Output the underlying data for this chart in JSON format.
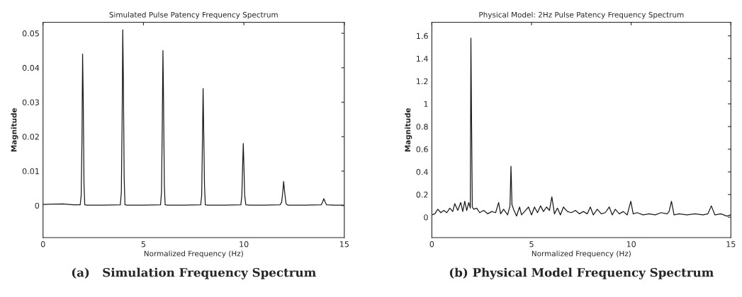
{
  "chart_data": [
    {
      "type": "line",
      "title": "Simulated Pulse Patency Frequency Spectrum",
      "xlabel": "Normalized Frequency (Hz)",
      "ylabel": "Magnitude",
      "annotations": [
        "(a)   Simulation Frequency Spectrum"
      ],
      "xlim": [
        0,
        15
      ],
      "xticks": [
        0,
        5,
        10,
        15
      ],
      "ylim": [
        -0.0093,
        0.0532
      ],
      "yticks": [
        0,
        0.01,
        0.02,
        0.03,
        0.04,
        0.05
      ],
      "grid": false,
      "marker": "none",
      "line_style": "solid",
      "series": [
        {
          "color": "#1a1a1a",
          "x": [
            0,
            0.5,
            1.0,
            1.5,
            1.85,
            1.9,
            1.94,
            1.97,
            2.0,
            2.04,
            2.08,
            2.2,
            3.0,
            3.85,
            3.9,
            3.94,
            3.97,
            4.0,
            4.04,
            4.08,
            4.2,
            5.0,
            5.85,
            5.9,
            5.94,
            5.97,
            6.0,
            6.04,
            6.08,
            6.2,
            7.0,
            7.85,
            7.9,
            7.94,
            7.97,
            8.0,
            8.04,
            8.08,
            8.2,
            9.0,
            9.85,
            9.9,
            9.94,
            9.97,
            10.0,
            10.04,
            10.1,
            10.3,
            11.0,
            11.8,
            11.88,
            11.94,
            11.98,
            12.03,
            12.1,
            12.2,
            13.0,
            13.85,
            13.92,
            13.98,
            14.05,
            14.12,
            14.5,
            15.0
          ],
          "values": [
            0.0003,
            0.0004,
            0.0005,
            0.0002,
            0.0002,
            0.003,
            0.02,
            0.044,
            0.032,
            0.006,
            0.0002,
            0.0001,
            0.0001,
            0.0002,
            0.004,
            0.026,
            0.051,
            0.037,
            0.008,
            0.0002,
            0.0001,
            0.0001,
            0.0002,
            0.004,
            0.025,
            0.045,
            0.031,
            0.006,
            0.0002,
            0.0001,
            0.0001,
            0.0002,
            0.003,
            0.02,
            0.034,
            0.022,
            0.006,
            0.0002,
            0.0001,
            0.0001,
            0.0002,
            0.003,
            0.012,
            0.018,
            0.012,
            0.003,
            0.0002,
            0.0001,
            0.0001,
            0.0002,
            0.001,
            0.004,
            0.007,
            0.004,
            0.0005,
            0.0001,
            0.0001,
            0.0002,
            0.001,
            0.002,
            0.001,
            0.0002,
            0.0001,
            0.0001
          ]
        }
      ]
    },
    {
      "type": "line",
      "title": "Physical Model: 2Hz Pulse Patency Frequency Spectrum",
      "xlabel": "Normalized Frequency (Hz)",
      "ylabel": "Magnitude",
      "annotations": [
        "(b) Physical Model Frequency Spectrum"
      ],
      "xlim": [
        0,
        15
      ],
      "xticks": [
        0,
        5,
        10,
        15
      ],
      "ylim": [
        -0.18,
        1.72
      ],
      "yticks": [
        0,
        0.2,
        0.4,
        0.6,
        0.8,
        1,
        1.2,
        1.4,
        1.6
      ],
      "grid": false,
      "marker": "none",
      "line_style": "solid",
      "series": [
        {
          "color": "#1a1a1a",
          "x": [
            0,
            0.15,
            0.3,
            0.45,
            0.6,
            0.75,
            0.9,
            1.05,
            1.15,
            1.3,
            1.45,
            1.55,
            1.65,
            1.75,
            1.85,
            1.93,
            1.96,
            1.99,
            2.03,
            2.1,
            2.25,
            2.4,
            2.6,
            2.8,
            3.0,
            3.2,
            3.35,
            3.45,
            3.6,
            3.8,
            3.92,
            3.97,
            4.02,
            4.1,
            4.25,
            4.4,
            4.5,
            4.65,
            4.85,
            5.0,
            5.15,
            5.3,
            5.45,
            5.6,
            5.75,
            5.9,
            6.02,
            6.15,
            6.3,
            6.45,
            6.6,
            6.8,
            7.0,
            7.2,
            7.4,
            7.6,
            7.8,
            7.95,
            8.1,
            8.3,
            8.5,
            8.7,
            8.9,
            9.05,
            9.2,
            9.4,
            9.6,
            9.8,
            9.98,
            10.1,
            10.3,
            10.6,
            10.9,
            11.2,
            11.5,
            11.8,
            11.9,
            12.02,
            12.15,
            12.4,
            12.8,
            13.2,
            13.6,
            13.85,
            14.02,
            14.2,
            14.5,
            14.8,
            15.0
          ],
          "values": [
            0.02,
            0.03,
            0.07,
            0.04,
            0.06,
            0.04,
            0.08,
            0.05,
            0.12,
            0.06,
            0.13,
            0.05,
            0.14,
            0.06,
            0.13,
            0.08,
            1.58,
            0.9,
            0.09,
            0.07,
            0.08,
            0.04,
            0.06,
            0.03,
            0.05,
            0.04,
            0.13,
            0.03,
            0.07,
            0.02,
            0.1,
            0.45,
            0.11,
            0.07,
            0.01,
            0.09,
            0.02,
            0.05,
            0.09,
            0.02,
            0.09,
            0.04,
            0.1,
            0.05,
            0.09,
            0.06,
            0.18,
            0.03,
            0.08,
            0.02,
            0.09,
            0.05,
            0.04,
            0.06,
            0.03,
            0.05,
            0.03,
            0.09,
            0.02,
            0.07,
            0.03,
            0.04,
            0.09,
            0.02,
            0.07,
            0.03,
            0.05,
            0.02,
            0.14,
            0.03,
            0.04,
            0.02,
            0.03,
            0.02,
            0.04,
            0.03,
            0.05,
            0.14,
            0.02,
            0.03,
            0.02,
            0.03,
            0.02,
            0.03,
            0.1,
            0.02,
            0.03,
            0.01,
            0.02
          ]
        }
      ]
    }
  ]
}
